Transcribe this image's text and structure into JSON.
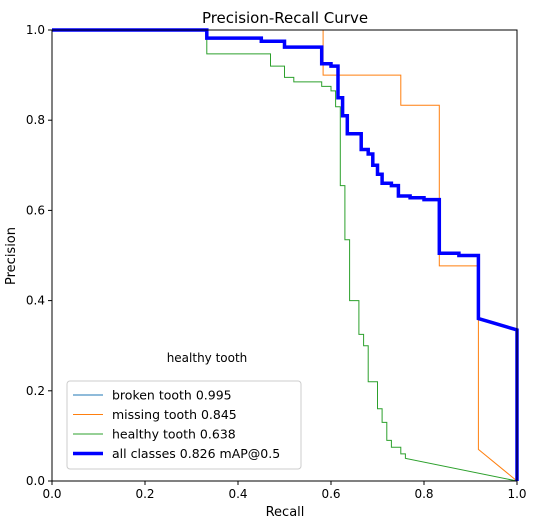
{
  "chart_data": {
    "type": "line",
    "title": "Precision-Recall Curve",
    "xlabel": "Recall",
    "ylabel": "Precision",
    "xlim": [
      0,
      1
    ],
    "ylim": [
      0,
      1
    ],
    "xticks": [
      "0.0",
      "0.2",
      "0.4",
      "0.6",
      "0.8",
      "1.0"
    ],
    "yticks": [
      "0.0",
      "0.2",
      "0.4",
      "0.6",
      "0.8",
      "1.0"
    ],
    "grid": false,
    "legend_position": "lower-left",
    "annotation": "healthy tooth",
    "series": [
      {
        "name": "broken tooth 0.995",
        "color": "#1f77b4",
        "width": 1,
        "points": [
          [
            0,
            1
          ],
          [
            1.0,
            1
          ],
          [
            1.0,
            0
          ]
        ]
      },
      {
        "name": "missing tooth 0.845",
        "color": "#ff7f0e",
        "width": 1,
        "points": [
          [
            0,
            1
          ],
          [
            0.583,
            1
          ],
          [
            0.583,
            0.9
          ],
          [
            0.75,
            0.9
          ],
          [
            0.75,
            0.833
          ],
          [
            0.833,
            0.833
          ],
          [
            0.833,
            0.477
          ],
          [
            0.917,
            0.477
          ],
          [
            0.917,
            0.07
          ],
          [
            1.0,
            0
          ]
        ]
      },
      {
        "name": "healthy tooth 0.638",
        "color": "#2ca02c",
        "width": 1,
        "points": [
          [
            0,
            1
          ],
          [
            0.333,
            1
          ],
          [
            0.333,
            0.947
          ],
          [
            0.47,
            0.947
          ],
          [
            0.47,
            0.92
          ],
          [
            0.5,
            0.92
          ],
          [
            0.5,
            0.895
          ],
          [
            0.52,
            0.895
          ],
          [
            0.52,
            0.885
          ],
          [
            0.58,
            0.885
          ],
          [
            0.58,
            0.875
          ],
          [
            0.6,
            0.875
          ],
          [
            0.6,
            0.865
          ],
          [
            0.61,
            0.865
          ],
          [
            0.61,
            0.83
          ],
          [
            0.62,
            0.83
          ],
          [
            0.62,
            0.655
          ],
          [
            0.63,
            0.655
          ],
          [
            0.63,
            0.535
          ],
          [
            0.64,
            0.535
          ],
          [
            0.64,
            0.4
          ],
          [
            0.66,
            0.4
          ],
          [
            0.66,
            0.325
          ],
          [
            0.67,
            0.325
          ],
          [
            0.67,
            0.3
          ],
          [
            0.68,
            0.3
          ],
          [
            0.68,
            0.22
          ],
          [
            0.7,
            0.22
          ],
          [
            0.7,
            0.16
          ],
          [
            0.71,
            0.16
          ],
          [
            0.71,
            0.13
          ],
          [
            0.72,
            0.13
          ],
          [
            0.72,
            0.09
          ],
          [
            0.73,
            0.09
          ],
          [
            0.73,
            0.075
          ],
          [
            0.75,
            0.075
          ],
          [
            0.75,
            0.06
          ],
          [
            0.76,
            0.06
          ],
          [
            0.76,
            0.05
          ],
          [
            1.0,
            0
          ]
        ]
      },
      {
        "name": "all classes 0.826 mAP@0.5",
        "color": "#0000ff",
        "width": 3.5,
        "points": [
          [
            0,
            1
          ],
          [
            0.333,
            1
          ],
          [
            0.333,
            0.982
          ],
          [
            0.45,
            0.982
          ],
          [
            0.45,
            0.975
          ],
          [
            0.5,
            0.975
          ],
          [
            0.5,
            0.962
          ],
          [
            0.58,
            0.962
          ],
          [
            0.58,
            0.925
          ],
          [
            0.6,
            0.925
          ],
          [
            0.6,
            0.92
          ],
          [
            0.615,
            0.92
          ],
          [
            0.615,
            0.85
          ],
          [
            0.625,
            0.85
          ],
          [
            0.625,
            0.81
          ],
          [
            0.635,
            0.81
          ],
          [
            0.635,
            0.77
          ],
          [
            0.665,
            0.77
          ],
          [
            0.665,
            0.735
          ],
          [
            0.68,
            0.735
          ],
          [
            0.68,
            0.725
          ],
          [
            0.69,
            0.725
          ],
          [
            0.69,
            0.7
          ],
          [
            0.7,
            0.7
          ],
          [
            0.7,
            0.68
          ],
          [
            0.71,
            0.68
          ],
          [
            0.71,
            0.66
          ],
          [
            0.73,
            0.66
          ],
          [
            0.73,
            0.655
          ],
          [
            0.745,
            0.655
          ],
          [
            0.745,
            0.632
          ],
          [
            0.77,
            0.632
          ],
          [
            0.77,
            0.628
          ],
          [
            0.8,
            0.628
          ],
          [
            0.8,
            0.624
          ],
          [
            0.833,
            0.624
          ],
          [
            0.833,
            0.505
          ],
          [
            0.875,
            0.505
          ],
          [
            0.875,
            0.5
          ],
          [
            0.917,
            0.5
          ],
          [
            0.917,
            0.36
          ],
          [
            0.95,
            0.35
          ],
          [
            1.0,
            0.335
          ],
          [
            1.0,
            0
          ]
        ]
      }
    ]
  }
}
